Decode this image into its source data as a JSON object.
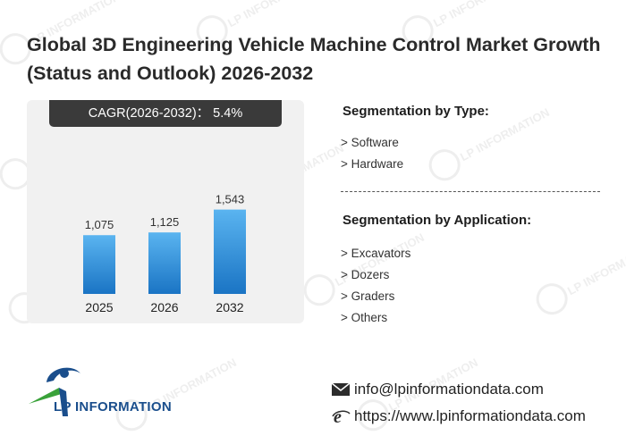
{
  "page": {
    "title": "Global 3D Engineering Vehicle Machine Control Market Growth (Status and Outlook) 2026-2032",
    "cagr_label": "CAGR(2026-2032)： 5.4%",
    "watermark_text": "LP INFORMATION"
  },
  "segmentation": {
    "type_heading": "Segmentation by Type:",
    "types": [
      "> Software",
      "> Hardware"
    ],
    "application_heading": "Segmentation by Application:",
    "applications": [
      "> Excavators",
      "> Dozers",
      "> Graders",
      "> Others"
    ]
  },
  "brand": {
    "logo_text": "LP INFORMATION",
    "colors": {
      "blue": "#1a4e8c",
      "green": "#3aa23a",
      "bar_top": "#5ab4f0",
      "bar_bottom": "#1a78c8"
    }
  },
  "contact": {
    "email": "info@lpinformationdata.com",
    "website": "https://www.lpinformationdata.com",
    "email_icon": "envelope-icon",
    "web_icon": "ie-browser-icon"
  },
  "chart_data": {
    "type": "bar",
    "categories": [
      "2025",
      "2026",
      "2032"
    ],
    "values": [
      1075,
      1125,
      1543
    ],
    "value_labels": [
      "1,075",
      "1,125",
      "1,543"
    ],
    "ylim": [
      0,
      1700
    ],
    "grid": false,
    "legend": "none"
  }
}
